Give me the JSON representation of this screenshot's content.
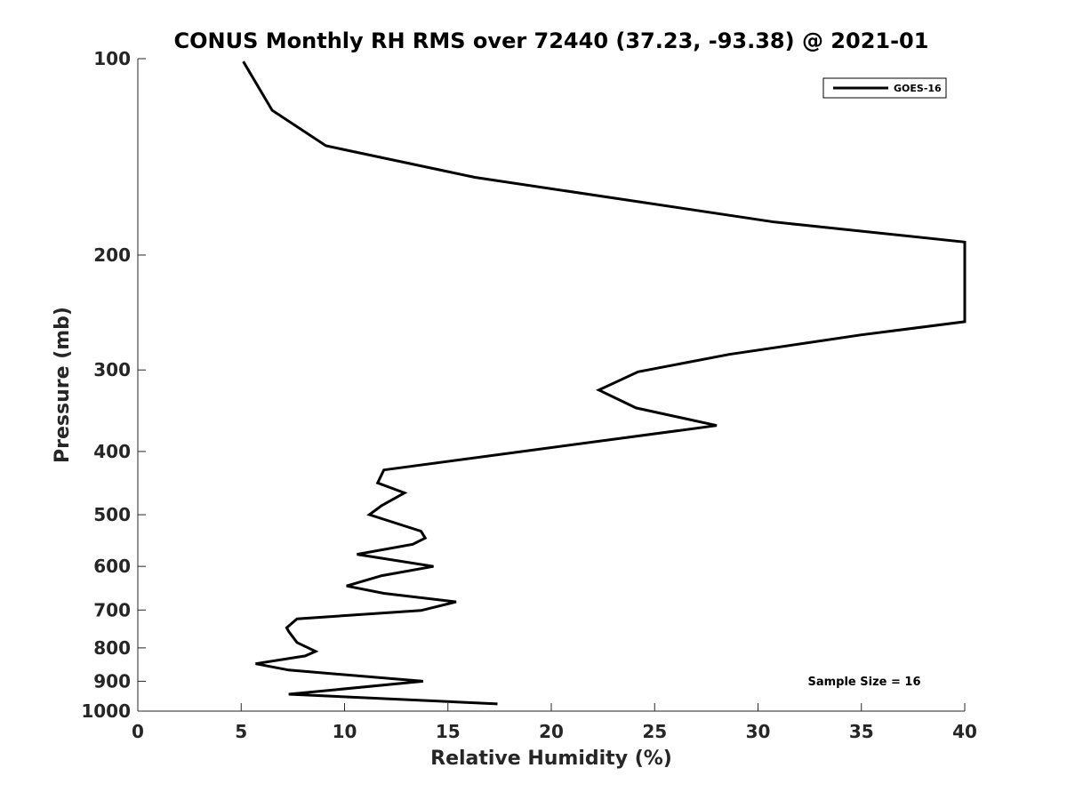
{
  "chart_data": {
    "type": "line",
    "title": "CONUS Monthly RH RMS over 72440 (37.23, -93.38) @ 2021-01",
    "xlabel": "Relative Humidity (%)",
    "ylabel": "Pressure (mb)",
    "xlim": [
      0,
      40
    ],
    "ylim": [
      1000,
      100
    ],
    "y_scale": "log",
    "x_ticks": [
      "0",
      "5",
      "10",
      "15",
      "20",
      "25",
      "30",
      "35",
      "40"
    ],
    "y_ticks": [
      "100",
      "200",
      "300",
      "400",
      "500",
      "600",
      "700",
      "800",
      "900",
      "1000"
    ],
    "grid": false,
    "legend": {
      "position": "top-right",
      "entries": [
        "GOES-16"
      ]
    },
    "annotation": "Sample Size = 16",
    "series": [
      {
        "name": "GOES-16",
        "color": "#000000",
        "points": [
          [
            17.4,
            975
          ],
          [
            7.3,
            942
          ],
          [
            13.8,
            900
          ],
          [
            7.3,
            865
          ],
          [
            5.7,
            846
          ],
          [
            8.1,
            823
          ],
          [
            8.6,
            810
          ],
          [
            7.7,
            785
          ],
          [
            7.3,
            755
          ],
          [
            7.2,
            745
          ],
          [
            7.7,
            722
          ],
          [
            13.7,
            701
          ],
          [
            15.4,
            680
          ],
          [
            11.9,
            660
          ],
          [
            10.1,
            643
          ],
          [
            11.8,
            620
          ],
          [
            14.3,
            600
          ],
          [
            10.6,
            575
          ],
          [
            13.3,
            555
          ],
          [
            13.9,
            543
          ],
          [
            13.7,
            530
          ],
          [
            11.2,
            500
          ],
          [
            11.8,
            484
          ],
          [
            12.9,
            463
          ],
          [
            11.6,
            447
          ],
          [
            11.9,
            427
          ],
          [
            28.0,
            365
          ],
          [
            24.1,
            343
          ],
          [
            22.3,
            322
          ],
          [
            24.2,
            302
          ],
          [
            28.6,
            284
          ],
          [
            35.0,
            265
          ],
          [
            40.0,
            253
          ],
          [
            40.0,
            191
          ],
          [
            30.8,
            178
          ],
          [
            16.3,
            152
          ],
          [
            9.1,
            136
          ],
          [
            6.5,
            120
          ],
          [
            5.1,
            101
          ]
        ]
      }
    ]
  }
}
